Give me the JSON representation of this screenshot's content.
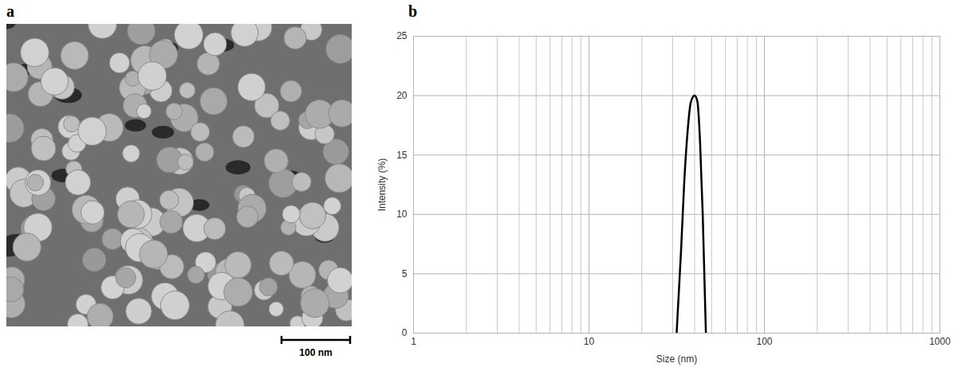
{
  "chart_data": [
    {
      "type": "image",
      "panel_label": "a",
      "scale_bar_label": "100 nm"
    },
    {
      "type": "line",
      "panel_label": "b",
      "x_label": "Size (nm)",
      "y_label": "Intensity (%)",
      "x": [
        31.6,
        33.5,
        35,
        36.5,
        38,
        40,
        41.5,
        43,
        44.5,
        46.4
      ],
      "values": [
        0,
        7,
        13,
        17,
        19.4,
        20,
        19.5,
        16,
        10,
        0
      ],
      "color": "#000000",
      "log": "x",
      "xlim": [
        1,
        1000
      ],
      "xticks": [
        1,
        10,
        100,
        1000
      ],
      "ylim": [
        0,
        25
      ],
      "yticks": [
        0,
        5,
        10,
        15,
        20,
        25
      ],
      "grid": true
    }
  ]
}
